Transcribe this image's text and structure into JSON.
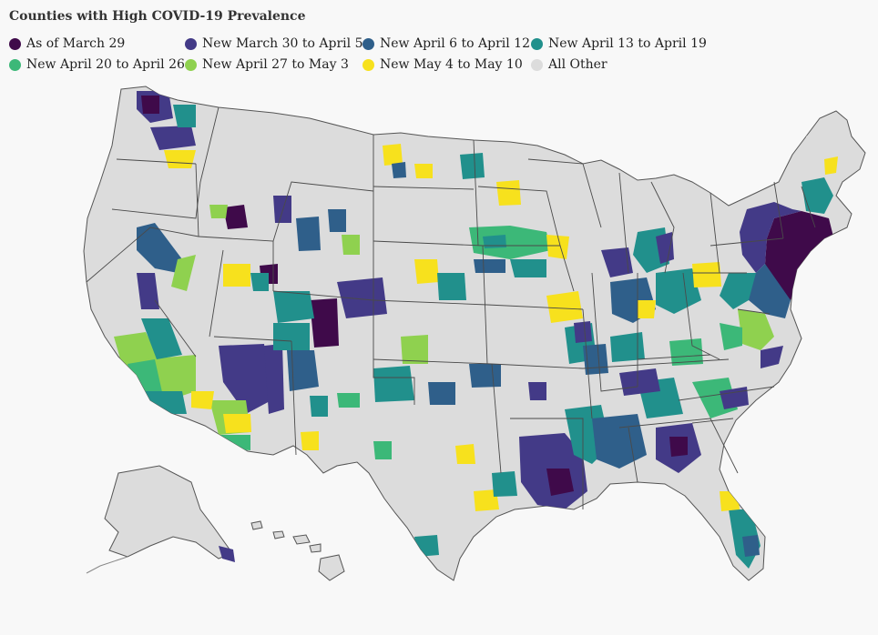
{
  "title": "Counties with High COVID-19 Prevalence",
  "legend": [
    {
      "label": "As of March 29",
      "color": "#3f0a4a"
    },
    {
      "label": "New March 30 to April 5",
      "color": "#433a87"
    },
    {
      "label": "New April 6 to April 12",
      "color": "#2f5f8a"
    },
    {
      "label": "New April 13 to April 19",
      "color": "#21908c"
    },
    {
      "label": "New April 20 to April 26",
      "color": "#3cb878"
    },
    {
      "label": "New April 27 to May 3",
      "color": "#8fd14f"
    },
    {
      "label": "New May 4 to May 10",
      "color": "#f7e11d"
    },
    {
      "label": "All Other",
      "color": "#dcdcdc"
    }
  ]
}
